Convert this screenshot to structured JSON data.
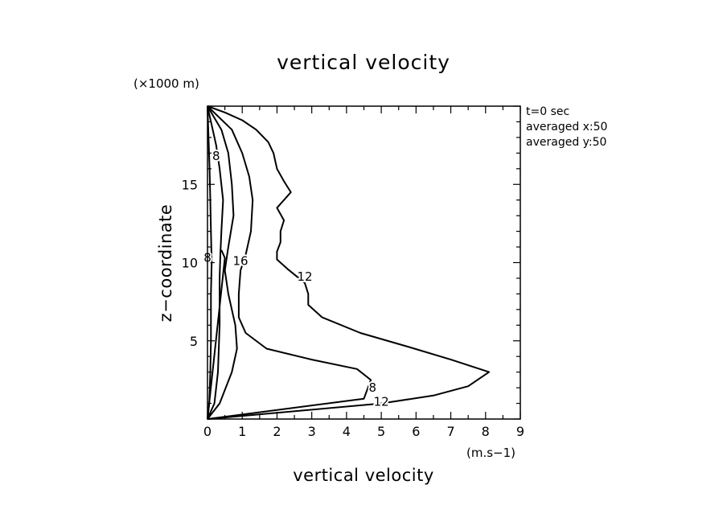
{
  "chart_data": {
    "type": "line",
    "title": "vertical velocity",
    "xlabel": "vertical velocity",
    "ylabel": "z−coordinate",
    "x_unit": "(m.s−1)",
    "y_unit": "(×1000 m)",
    "xlim": [
      0,
      9
    ],
    "ylim": [
      0,
      20
    ],
    "x_ticks": [
      "0",
      "1",
      "2",
      "3",
      "4",
      "5",
      "6",
      "7",
      "8",
      "9"
    ],
    "y_ticks": [
      "5",
      "10",
      "15"
    ],
    "grid": false,
    "info_lines": [
      "t=0 sec",
      "averaged  x:50",
      "averaged  y:50"
    ],
    "contour_labels": [
      {
        "text": "8",
        "x": 0.25,
        "y": 16.8
      },
      {
        "text": "8",
        "x": 0.0,
        "y": 10.3
      },
      {
        "text": "16",
        "x": 0.95,
        "y": 10.1
      },
      {
        "text": "12",
        "x": 2.8,
        "y": 9.1
      },
      {
        "text": "8",
        "x": 4.75,
        "y": 2.0
      },
      {
        "text": "12",
        "x": 5.0,
        "y": 1.1
      }
    ],
    "series": [
      {
        "values": [
          [
            0,
            0
          ],
          [
            0.05,
            1
          ],
          [
            0.08,
            3
          ],
          [
            0.1,
            5
          ],
          [
            0.1,
            8
          ],
          [
            0.12,
            10
          ],
          [
            0.1,
            12
          ],
          [
            0.08,
            14
          ],
          [
            0.06,
            16
          ],
          [
            0.03,
            18
          ],
          [
            0,
            20
          ]
        ]
      },
      {
        "values": [
          [
            0,
            0
          ],
          [
            0.2,
            1
          ],
          [
            0.3,
            3
          ],
          [
            0.35,
            6
          ],
          [
            0.35,
            9
          ],
          [
            0.37,
            10.5
          ],
          [
            0.4,
            12
          ],
          [
            0.45,
            14
          ],
          [
            0.35,
            16
          ],
          [
            0.25,
            17.5
          ],
          [
            0.15,
            18.5
          ],
          [
            0,
            20
          ]
        ]
      },
      {
        "values": [
          [
            0,
            0
          ],
          [
            0.35,
            1
          ],
          [
            0.7,
            3
          ],
          [
            0.85,
            4.5
          ],
          [
            0.8,
            6
          ],
          [
            0.6,
            8
          ],
          [
            0.5,
            9.5
          ],
          [
            0.6,
            11
          ],
          [
            0.75,
            13
          ],
          [
            0.7,
            15
          ],
          [
            0.6,
            17
          ],
          [
            0.4,
            18.5
          ],
          [
            0,
            20
          ]
        ]
      },
      {
        "values": [
          [
            0,
            0
          ],
          [
            4.5,
            1.3
          ],
          [
            4.7,
            2.5
          ],
          [
            4.3,
            3.2
          ],
          [
            3,
            3.8
          ],
          [
            1.7,
            4.5
          ],
          [
            1.1,
            5.5
          ],
          [
            0.9,
            6.5
          ],
          [
            0.9,
            8
          ],
          [
            0.95,
            9.5
          ],
          [
            1.1,
            10.5
          ],
          [
            1.25,
            12
          ],
          [
            1.3,
            14
          ],
          [
            1.2,
            15.5
          ],
          [
            1.0,
            17
          ],
          [
            0.7,
            18.5
          ],
          [
            0,
            20
          ]
        ]
      },
      {
        "values": [
          [
            0,
            0
          ],
          [
            5,
            1
          ],
          [
            6.5,
            1.5
          ],
          [
            7.5,
            2.1
          ],
          [
            8.1,
            3
          ],
          [
            7,
            3.8
          ],
          [
            5.8,
            4.6
          ],
          [
            4.4,
            5.5
          ],
          [
            3.3,
            6.5
          ],
          [
            2.9,
            7.3
          ],
          [
            2.9,
            8
          ],
          [
            2.8,
            8.7
          ],
          [
            2.3,
            9.6
          ],
          [
            2.0,
            10.2
          ],
          [
            2.0,
            10.7
          ],
          [
            2.1,
            11.3
          ],
          [
            2.1,
            12
          ],
          [
            2.2,
            12.7
          ],
          [
            2.0,
            13.5
          ],
          [
            2.2,
            14
          ],
          [
            2.4,
            14.5
          ],
          [
            2.2,
            15.2
          ],
          [
            2.0,
            16
          ],
          [
            1.9,
            17
          ],
          [
            1.75,
            17.7
          ],
          [
            1.4,
            18.5
          ],
          [
            1.0,
            19.1
          ],
          [
            0.5,
            19.6
          ],
          [
            0,
            20
          ]
        ]
      },
      {
        "values": [
          [
            0,
            0
          ],
          [
            0.5,
            10.3
          ],
          [
            0.4,
            10.8
          ]
        ]
      }
    ]
  }
}
